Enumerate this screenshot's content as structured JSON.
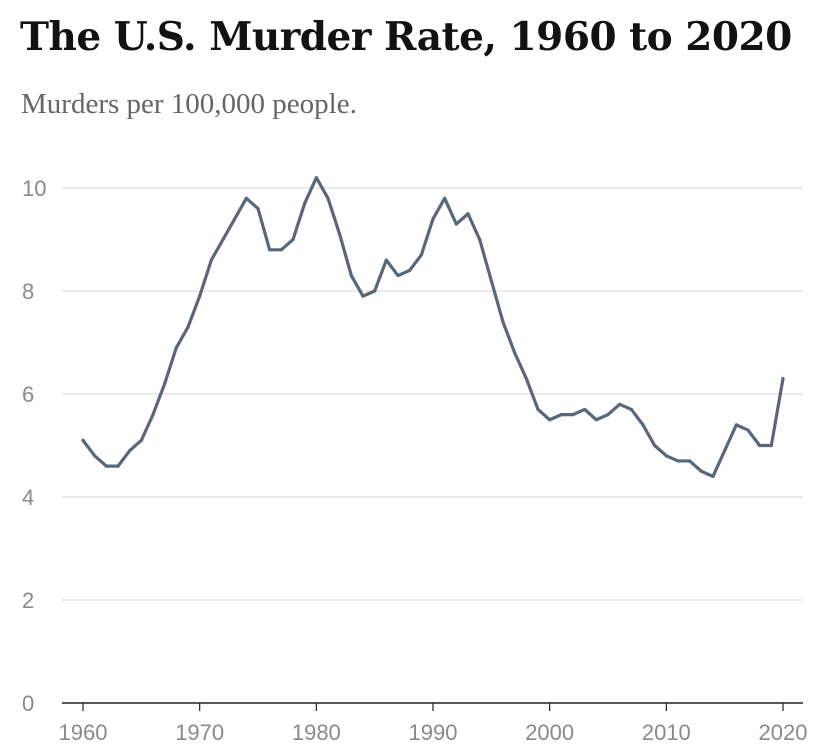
{
  "title": "The U.S. Murder Rate, 1960 to 2020",
  "subtitle": "Murders per 100,000 people.",
  "chart_data": {
    "type": "line",
    "title": "The U.S. Murder Rate, 1960 to 2020",
    "subtitle": "Murders per 100,000 people.",
    "xlabel": "",
    "ylabel": "",
    "xlim": [
      1960,
      2020
    ],
    "ylim": [
      0,
      10
    ],
    "x_ticks": [
      1960,
      1970,
      1980,
      1990,
      2000,
      2010,
      2020
    ],
    "y_ticks": [
      0,
      2,
      4,
      6,
      8,
      10
    ],
    "grid": true,
    "colors": {
      "line": "#56687a",
      "grid": "#dddddd",
      "baseline": "#222222"
    },
    "series": [
      {
        "x": [
          1960,
          1961,
          1962,
          1963,
          1964,
          1965,
          1966,
          1967,
          1968,
          1969,
          1970,
          1971,
          1972,
          1973,
          1974,
          1975,
          1976,
          1977,
          1978,
          1979,
          1980,
          1981,
          1982,
          1983,
          1984,
          1985,
          1986,
          1987,
          1988,
          1989,
          1990,
          1991,
          1992,
          1993,
          1994,
          1995,
          1996,
          1997,
          1998,
          1999,
          2000,
          2001,
          2002,
          2003,
          2004,
          2005,
          2006,
          2007,
          2008,
          2009,
          2010,
          2011,
          2012,
          2013,
          2014,
          2015,
          2016,
          2017,
          2018,
          2019,
          2020
        ],
        "values": [
          5.1,
          4.8,
          4.6,
          4.6,
          4.9,
          5.1,
          5.6,
          6.2,
          6.9,
          7.3,
          7.9,
          8.6,
          9.0,
          9.4,
          9.8,
          9.6,
          8.8,
          8.8,
          9.0,
          9.7,
          10.2,
          9.8,
          9.1,
          8.3,
          7.9,
          8.0,
          8.6,
          8.3,
          8.4,
          8.7,
          9.4,
          9.8,
          9.3,
          9.5,
          9.0,
          8.2,
          7.4,
          6.8,
          6.3,
          5.7,
          5.5,
          5.6,
          5.6,
          5.7,
          5.5,
          5.6,
          5.8,
          5.7,
          5.4,
          5.0,
          4.8,
          4.7,
          4.7,
          4.5,
          4.4,
          4.9,
          5.4,
          5.3,
          5.0,
          5.0,
          6.3
        ]
      }
    ]
  }
}
